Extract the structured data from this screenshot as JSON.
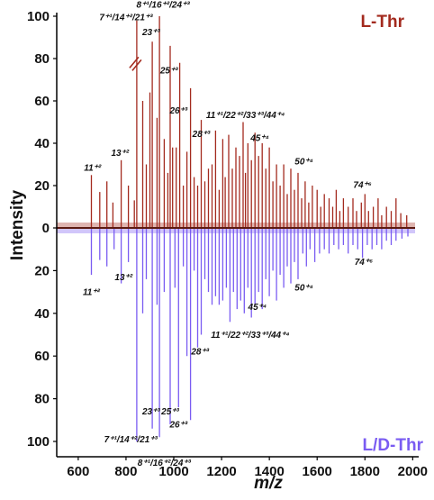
{
  "chart_data": {
    "type": "mirror-spectrum",
    "xlabel": "m/z",
    "ylabel": "Intensity",
    "xlim": [
      510,
      2010
    ],
    "ylim": [
      -100,
      100
    ],
    "x_ticks": [
      "600",
      "800",
      "1000",
      "1200",
      "1400",
      "1600",
      "1800",
      "2000"
    ],
    "x_tick_values": [
      600,
      800,
      1000,
      1200,
      1400,
      1600,
      1800,
      2000
    ],
    "y_ticks_top": [
      "0",
      "20",
      "40",
      "60",
      "80",
      "100"
    ],
    "y_ticks_bottom": [
      "20",
      "40",
      "60",
      "80",
      "100"
    ],
    "colors": {
      "top": "#a32a1e",
      "bottom": "#7a5cf2",
      "baseline": "#5c1a10"
    },
    "series": [
      {
        "name": "L-Thr",
        "direction": "up",
        "peaks": [
          [
            655,
            25
          ],
          [
            690,
            17
          ],
          [
            720,
            22
          ],
          [
            745,
            12
          ],
          [
            780,
            32
          ],
          [
            810,
            20
          ],
          [
            835,
            13
          ],
          [
            845,
            98
          ],
          [
            870,
            60
          ],
          [
            885,
            30
          ],
          [
            900,
            64
          ],
          [
            910,
            88
          ],
          [
            930,
            52
          ],
          [
            940,
            100
          ],
          [
            960,
            42
          ],
          [
            975,
            26
          ],
          [
            985,
            86
          ],
          [
            995,
            38
          ],
          [
            1010,
            38
          ],
          [
            1025,
            78
          ],
          [
            1040,
            20
          ],
          [
            1055,
            36
          ],
          [
            1070,
            66
          ],
          [
            1085,
            24
          ],
          [
            1100,
            20
          ],
          [
            1115,
            51
          ],
          [
            1130,
            22
          ],
          [
            1145,
            28
          ],
          [
            1160,
            30
          ],
          [
            1175,
            46
          ],
          [
            1190,
            18
          ],
          [
            1205,
            42
          ],
          [
            1215,
            24
          ],
          [
            1230,
            44
          ],
          [
            1245,
            28
          ],
          [
            1260,
            38
          ],
          [
            1275,
            34
          ],
          [
            1290,
            50
          ],
          [
            1300,
            26
          ],
          [
            1310,
            40
          ],
          [
            1325,
            32
          ],
          [
            1340,
            45
          ],
          [
            1355,
            34
          ],
          [
            1370,
            40
          ],
          [
            1385,
            28
          ],
          [
            1400,
            38
          ],
          [
            1415,
            22
          ],
          [
            1430,
            30
          ],
          [
            1445,
            20
          ],
          [
            1460,
            30
          ],
          [
            1475,
            16
          ],
          [
            1490,
            28
          ],
          [
            1505,
            18
          ],
          [
            1520,
            26
          ],
          [
            1535,
            14
          ],
          [
            1550,
            22
          ],
          [
            1565,
            12
          ],
          [
            1580,
            20
          ],
          [
            1600,
            18
          ],
          [
            1615,
            10
          ],
          [
            1630,
            16
          ],
          [
            1650,
            14
          ],
          [
            1665,
            10
          ],
          [
            1680,
            18
          ],
          [
            1695,
            8
          ],
          [
            1710,
            14
          ],
          [
            1730,
            10
          ],
          [
            1750,
            14
          ],
          [
            1765,
            8
          ],
          [
            1785,
            12
          ],
          [
            1800,
            16
          ],
          [
            1815,
            8
          ],
          [
            1835,
            10
          ],
          [
            1855,
            14
          ],
          [
            1870,
            6
          ],
          [
            1890,
            10
          ],
          [
            1910,
            8
          ],
          [
            1930,
            14
          ],
          [
            1950,
            7
          ],
          [
            1975,
            6
          ]
        ]
      },
      {
        "name": "L/D-Thr",
        "direction": "down",
        "peaks": [
          [
            655,
            22
          ],
          [
            690,
            15
          ],
          [
            720,
            18
          ],
          [
            750,
            10
          ],
          [
            780,
            26
          ],
          [
            810,
            16
          ],
          [
            845,
            100
          ],
          [
            870,
            40
          ],
          [
            885,
            24
          ],
          [
            910,
            94
          ],
          [
            930,
            36
          ],
          [
            940,
            98
          ],
          [
            960,
            30
          ],
          [
            985,
            92
          ],
          [
            1005,
            28
          ],
          [
            1020,
            84
          ],
          [
            1040,
            18
          ],
          [
            1055,
            60
          ],
          [
            1070,
            90
          ],
          [
            1085,
            20
          ],
          [
            1100,
            56
          ],
          [
            1115,
            50
          ],
          [
            1130,
            24
          ],
          [
            1145,
            30
          ],
          [
            1160,
            36
          ],
          [
            1175,
            32
          ],
          [
            1190,
            36
          ],
          [
            1205,
            34
          ],
          [
            1220,
            28
          ],
          [
            1235,
            44
          ],
          [
            1250,
            30
          ],
          [
            1265,
            38
          ],
          [
            1280,
            34
          ],
          [
            1295,
            40
          ],
          [
            1310,
            28
          ],
          [
            1325,
            42
          ],
          [
            1340,
            36
          ],
          [
            1355,
            30
          ],
          [
            1370,
            38
          ],
          [
            1385,
            24
          ],
          [
            1400,
            32
          ],
          [
            1415,
            20
          ],
          [
            1430,
            34
          ],
          [
            1445,
            22
          ],
          [
            1460,
            28
          ],
          [
            1475,
            18
          ],
          [
            1490,
            26
          ],
          [
            1505,
            16
          ],
          [
            1520,
            24
          ],
          [
            1540,
            12
          ],
          [
            1555,
            18
          ],
          [
            1570,
            10
          ],
          [
            1590,
            16
          ],
          [
            1610,
            12
          ],
          [
            1630,
            10
          ],
          [
            1650,
            12
          ],
          [
            1670,
            8
          ],
          [
            1690,
            10
          ],
          [
            1710,
            8
          ],
          [
            1730,
            12
          ],
          [
            1750,
            8
          ],
          [
            1770,
            10
          ],
          [
            1790,
            14
          ],
          [
            1810,
            8
          ],
          [
            1830,
            10
          ],
          [
            1850,
            8
          ],
          [
            1870,
            10
          ],
          [
            1890,
            6
          ],
          [
            1910,
            8
          ],
          [
            1930,
            6
          ],
          [
            1955,
            5
          ],
          [
            1980,
            4
          ]
        ]
      }
    ],
    "annotations": [
      {
        "text": "7⁺¹/14⁺²/21⁺³",
        "x": 800,
        "y": 98,
        "side": "top"
      },
      {
        "text": "8⁺¹/16⁺²/24⁺³",
        "x": 955,
        "y": 104,
        "side": "top"
      },
      {
        "text": "23⁺³",
        "x": 905,
        "y": 91,
        "side": "top"
      },
      {
        "text": "25⁺³",
        "x": 980,
        "y": 73,
        "side": "top"
      },
      {
        "text": "26⁺³",
        "x": 1020,
        "y": 54,
        "side": "top"
      },
      {
        "text": "28⁺³",
        "x": 1115,
        "y": 43,
        "side": "top"
      },
      {
        "text": "11⁺¹/22⁺²/33⁺³/44⁺⁴",
        "x": 1300,
        "y": 52,
        "side": "top"
      },
      {
        "text": "45⁺⁴",
        "x": 1360,
        "y": 41,
        "side": "top"
      },
      {
        "text": "50⁺⁴",
        "x": 1545,
        "y": 30,
        "side": "top"
      },
      {
        "text": "74⁺⁶",
        "x": 1790,
        "y": 19,
        "side": "top"
      },
      {
        "text": "11⁺²",
        "x": 660,
        "y": 27,
        "side": "top"
      },
      {
        "text": "13⁺²",
        "x": 775,
        "y": 34,
        "side": "top"
      },
      {
        "text": "11⁺²",
        "x": 655,
        "y": -28,
        "side": "bottom"
      },
      {
        "text": "13⁺²",
        "x": 790,
        "y": -21,
        "side": "bottom"
      },
      {
        "text": "74⁺⁶",
        "x": 1795,
        "y": -14,
        "side": "bottom"
      },
      {
        "text": "50⁺⁴",
        "x": 1545,
        "y": -26,
        "side": "bottom"
      },
      {
        "text": "45⁺⁴",
        "x": 1350,
        "y": -35,
        "side": "bottom"
      },
      {
        "text": "11⁺¹/22⁺²/33⁺³/44⁺⁴",
        "x": 1320,
        "y": -48,
        "side": "bottom"
      },
      {
        "text": "28⁺³",
        "x": 1110,
        "y": -56,
        "side": "bottom"
      },
      {
        "text": "23⁺³",
        "x": 905,
        "y": -84,
        "side": "bottom"
      },
      {
        "text": "25⁺³",
        "x": 985,
        "y": -84,
        "side": "bottom"
      },
      {
        "text": "26⁺³",
        "x": 1020,
        "y": -90,
        "side": "bottom"
      },
      {
        "text": "7⁺¹/14⁺²/21⁺³",
        "x": 820,
        "y": -97,
        "side": "bottom"
      },
      {
        "text": "8⁺¹/16⁺²/24⁺³",
        "x": 960,
        "y": -108,
        "side": "bottom"
      }
    ]
  }
}
